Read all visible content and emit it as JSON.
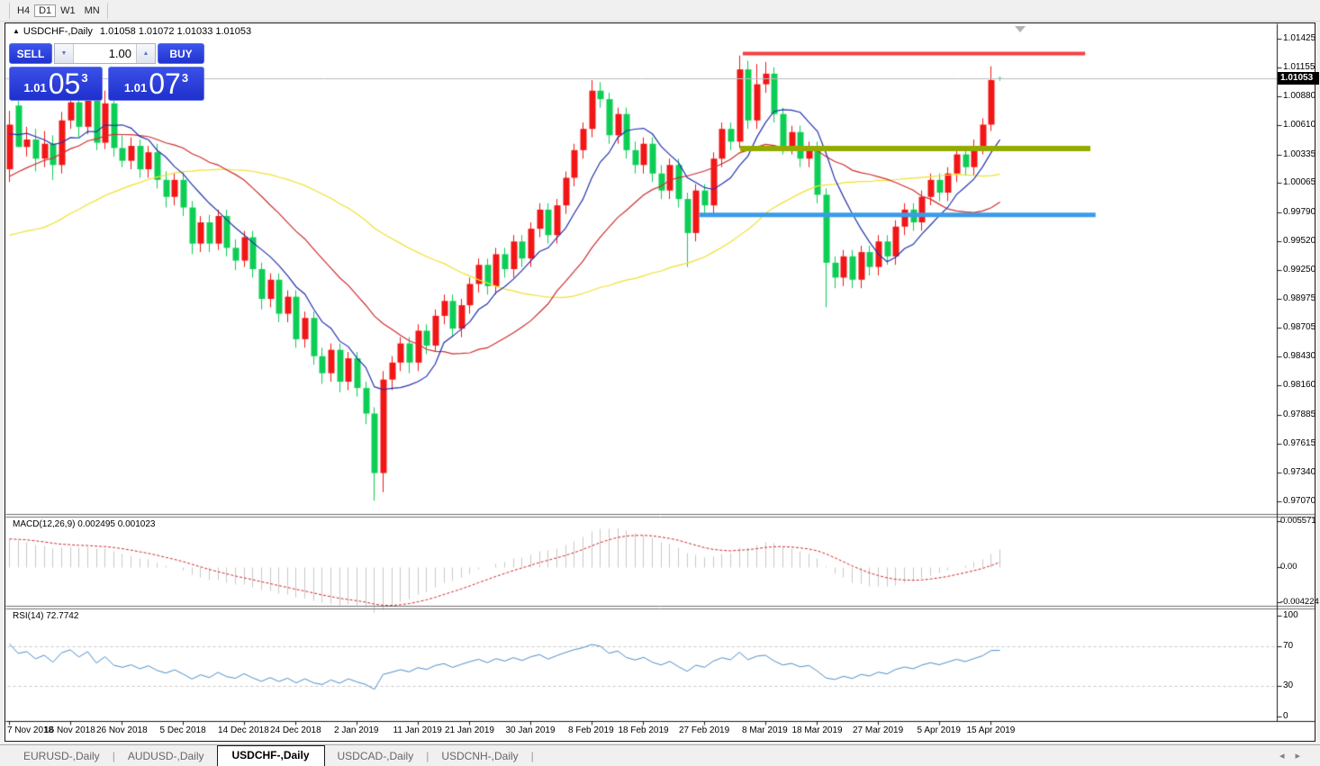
{
  "toolbar": {
    "timeframes": [
      {
        "label": "H4",
        "active": false
      },
      {
        "label": "D1",
        "active": true
      },
      {
        "label": "W1",
        "active": false
      },
      {
        "label": "MN",
        "active": false
      }
    ]
  },
  "chart": {
    "title": {
      "icon": "▲",
      "symbol": "USDCHF-,Daily",
      "ohlc_text": "1.01058 1.01072 1.01033 1.01053"
    },
    "trade_panel": {
      "sell_label": "SELL",
      "buy_label": "BUY",
      "volume": "1.00",
      "down_icon": "▼",
      "up_icon": "▲",
      "sell_price": {
        "prefix": "1.01",
        "big": "05",
        "sup": "3"
      },
      "buy_price": {
        "prefix": "1.01",
        "big": "07",
        "sup": "3"
      }
    },
    "colors": {
      "candle_up": "#F21616",
      "candle_down": "#0DCE55",
      "ma_fast": "#2333B0",
      "ma_mid": "#CE2F2F",
      "ma_slow": "#F0E130",
      "macd_bar": "#c9c9c9",
      "macd_signal": "#D02B2B",
      "rsi_line": "#4D8FCC",
      "price_line": "#bbbbbb"
    }
  },
  "chart_data": {
    "type": "candlestick",
    "symbol": "USDCHF-",
    "timeframe": "Daily",
    "current_price": 1.01053,
    "current_price_label": "1.01053",
    "price_axis_ticks": [
      "1.01425",
      "1.01155",
      "1.00880",
      "1.00610",
      "1.00335",
      "1.00065",
      "0.99790",
      "0.99520",
      "0.99250",
      "0.98975",
      "0.98705",
      "0.98430",
      "0.98160",
      "0.97885",
      "0.97615",
      "0.97340",
      "0.97070"
    ],
    "date_ticks": [
      {
        "index": 0,
        "label": "7 Nov 2018"
      },
      {
        "index": 7,
        "label": "16 Nov 2018"
      },
      {
        "index": 13,
        "label": "26 Nov 2018"
      },
      {
        "index": 20,
        "label": "5 Dec 2018"
      },
      {
        "index": 27,
        "label": "14 Dec 2018"
      },
      {
        "index": 33,
        "label": "24 Dec 2018"
      },
      {
        "index": 40,
        "label": "2 Jan 2019"
      },
      {
        "index": 47,
        "label": "11 Jan 2019"
      },
      {
        "index": 53,
        "label": "21 Jan 2019"
      },
      {
        "index": 60,
        "label": "30 Jan 2019"
      },
      {
        "index": 67,
        "label": "8 Feb 2019"
      },
      {
        "index": 73,
        "label": "18 Feb 2019"
      },
      {
        "index": 80,
        "label": "27 Feb 2019"
      },
      {
        "index": 87,
        "label": "8 Mar 2019"
      },
      {
        "index": 93,
        "label": "18 Mar 2019"
      },
      {
        "index": 100,
        "label": "27 Mar 2019"
      },
      {
        "index": 107,
        "label": "5 Apr 2019"
      },
      {
        "index": 113,
        "label": "15 Apr 2019"
      }
    ],
    "warmup_closes": [
      0.986,
      0.9868,
      0.9862,
      0.9874,
      0.988,
      0.9872,
      0.9886,
      0.9892,
      0.9884,
      0.9898,
      0.9906,
      0.9898,
      0.9912,
      0.992,
      0.9912,
      0.9926,
      0.9934,
      0.9926,
      0.994,
      0.9948,
      0.9952,
      0.9964,
      0.9958,
      0.9972,
      0.998,
      0.9974,
      0.999,
      1.0,
      0.9992,
      1.0008,
      1.002,
      1.0012,
      1.003,
      1.0045,
      1.0038,
      1.0055,
      1.0068,
      1.006,
      1.0052,
      1.0045
    ],
    "candles": [
      [
        1.002,
        1.0075,
        1.0008,
        1.0062
      ],
      [
        1.008,
        1.009,
        1.0052,
        1.0041
      ],
      [
        1.0041,
        1.006,
        1.0032,
        1.0048
      ],
      [
        1.0048,
        1.0058,
        1.0018,
        1.003
      ],
      [
        1.003,
        1.0056,
        1.0022,
        1.0044
      ],
      [
        1.0044,
        1.0052,
        1.001,
        1.0024
      ],
      [
        1.0024,
        1.0074,
        1.0016,
        1.0066
      ],
      [
        1.0066,
        1.0092,
        1.0058,
        1.0083
      ],
      [
        1.0083,
        1.0091,
        1.005,
        1.006
      ],
      [
        1.006,
        1.0098,
        1.0053,
        1.009
      ],
      [
        1.009,
        1.0097,
        1.0038,
        1.0045
      ],
      [
        1.0045,
        1.0094,
        1.0039,
        1.0082
      ],
      [
        1.0082,
        1.0089,
        1.0032,
        1.004
      ],
      [
        1.004,
        1.0052,
        1.0022,
        1.0028
      ],
      [
        1.0028,
        1.005,
        1.002,
        1.0042
      ],
      [
        1.0042,
        1.0048,
        1.0012,
        1.002
      ],
      [
        1.002,
        1.0042,
        1.0012,
        1.0036
      ],
      [
        1.0036,
        1.0044,
        1.0002,
        1.001
      ],
      [
        1.001,
        1.0018,
        0.9984,
        0.9994
      ],
      [
        0.9994,
        1.0016,
        0.9986,
        1.001
      ],
      [
        1.001,
        1.0017,
        0.9976,
        0.9984
      ],
      [
        0.9984,
        0.999,
        0.994,
        0.995
      ],
      [
        0.995,
        0.9976,
        0.9942,
        0.997
      ],
      [
        0.997,
        0.9977,
        0.9942,
        0.995
      ],
      [
        0.995,
        0.9982,
        0.9944,
        0.9976
      ],
      [
        0.9976,
        0.9982,
        0.9938,
        0.9946
      ],
      [
        0.9946,
        0.9954,
        0.9925,
        0.9934
      ],
      [
        0.9934,
        0.9962,
        0.9928,
        0.9956
      ],
      [
        0.9956,
        0.9962,
        0.9918,
        0.9926
      ],
      [
        0.9926,
        0.9932,
        0.9888,
        0.9898
      ],
      [
        0.9898,
        0.9922,
        0.989,
        0.9916
      ],
      [
        0.9916,
        0.9922,
        0.9876,
        0.9884
      ],
      [
        0.9884,
        0.9906,
        0.9876,
        0.99
      ],
      [
        0.99,
        0.9906,
        0.9852,
        0.986
      ],
      [
        0.986,
        0.9886,
        0.9852,
        0.988
      ],
      [
        0.988,
        0.9886,
        0.9836,
        0.9844
      ],
      [
        0.9844,
        0.9852,
        0.9818,
        0.9828
      ],
      [
        0.9828,
        0.9856,
        0.982,
        0.985
      ],
      [
        0.985,
        0.9856,
        0.981,
        0.982
      ],
      [
        0.982,
        0.9848,
        0.9812,
        0.9842
      ],
      [
        0.9842,
        0.9848,
        0.9806,
        0.9814
      ],
      [
        0.9814,
        0.982,
        0.978,
        0.979
      ],
      [
        0.979,
        0.9796,
        0.9708,
        0.9734
      ],
      [
        0.9734,
        0.983,
        0.9716,
        0.9822
      ],
      [
        0.9822,
        0.9844,
        0.9812,
        0.9838
      ],
      [
        0.9838,
        0.9862,
        0.983,
        0.9856
      ],
      [
        0.9856,
        0.9862,
        0.9828,
        0.9838
      ],
      [
        0.9838,
        0.9874,
        0.983,
        0.9868
      ],
      [
        0.9868,
        0.9874,
        0.9846,
        0.9854
      ],
      [
        0.9854,
        0.9888,
        0.9848,
        0.9882
      ],
      [
        0.9882,
        0.9902,
        0.9874,
        0.9896
      ],
      [
        0.9896,
        0.9902,
        0.9862,
        0.987
      ],
      [
        0.987,
        0.9898,
        0.9862,
        0.9892
      ],
      [
        0.9892,
        0.9918,
        0.9884,
        0.9912
      ],
      [
        0.9912,
        0.9936,
        0.9904,
        0.993
      ],
      [
        0.993,
        0.9936,
        0.9902,
        0.991
      ],
      [
        0.991,
        0.9946,
        0.9902,
        0.994
      ],
      [
        0.994,
        0.9946,
        0.9918,
        0.9926
      ],
      [
        0.9926,
        0.9958,
        0.9918,
        0.9952
      ],
      [
        0.9952,
        0.9958,
        0.9928,
        0.9936
      ],
      [
        0.9936,
        0.997,
        0.9928,
        0.9964
      ],
      [
        0.9964,
        0.9988,
        0.9956,
        0.9982
      ],
      [
        0.9982,
        0.9988,
        0.995,
        0.9958
      ],
      [
        0.9958,
        0.9992,
        0.995,
        0.9986
      ],
      [
        0.9986,
        1.0018,
        0.9978,
        1.0012
      ],
      [
        1.0012,
        1.0044,
        1.0004,
        1.0038
      ],
      [
        1.0038,
        1.0064,
        1.003,
        1.0058
      ],
      [
        1.0058,
        1.0104,
        1.005,
        1.0094
      ],
      [
        1.0094,
        1.0102,
        1.0078,
        1.0086
      ],
      [
        1.0086,
        1.0092,
        1.0044,
        1.0052
      ],
      [
        1.0052,
        1.0078,
        1.0044,
        1.0072
      ],
      [
        1.0072,
        1.0078,
        1.003,
        1.0038
      ],
      [
        1.0038,
        1.0046,
        1.0016,
        1.0024
      ],
      [
        1.0024,
        1.005,
        1.0016,
        1.0044
      ],
      [
        1.0044,
        1.005,
        1.0008,
        1.0016
      ],
      [
        1.0016,
        1.0024,
        0.9992,
        1.0
      ],
      [
        1.0,
        1.003,
        0.9992,
        1.0024
      ],
      [
        1.0024,
        1.003,
        0.9984,
        0.9992
      ],
      [
        0.9992,
        0.9998,
        0.9928,
        0.996
      ],
      [
        0.996,
        1.0006,
        0.9952,
        1.0
      ],
      [
        1.0,
        1.0006,
        0.9978,
        0.9986
      ],
      [
        0.9986,
        1.0036,
        0.9978,
        1.003
      ],
      [
        1.003,
        1.0064,
        1.0022,
        1.0058
      ],
      [
        1.0058,
        1.0064,
        1.0038,
        1.0046
      ],
      [
        1.0046,
        1.0127,
        1.004,
        1.0114
      ],
      [
        1.0114,
        1.0122,
        1.0058,
        1.0066
      ],
      [
        1.0066,
        1.0119,
        1.0058,
        1.01
      ],
      [
        1.01,
        1.0121,
        1.0092,
        1.011
      ],
      [
        1.011,
        1.0116,
        1.0064,
        1.0072
      ],
      [
        1.0072,
        1.0078,
        1.0034,
        1.0042
      ],
      [
        1.0042,
        1.0061,
        1.0034,
        1.0055
      ],
      [
        1.0055,
        1.0061,
        1.0022,
        1.003
      ],
      [
        1.003,
        1.0046,
        1.0022,
        1.004
      ],
      [
        1.004,
        1.0046,
        0.9988,
        0.9996
      ],
      [
        0.9996,
        1.0002,
        0.989,
        0.9932
      ],
      [
        0.9932,
        0.9938,
        0.9908,
        0.9918
      ],
      [
        0.9918,
        0.9944,
        0.991,
        0.9938
      ],
      [
        0.9938,
        0.9944,
        0.9908,
        0.9916
      ],
      [
        0.9916,
        0.9948,
        0.9908,
        0.9942
      ],
      [
        0.9942,
        0.9948,
        0.992,
        0.9928
      ],
      [
        0.9928,
        0.9958,
        0.992,
        0.9952
      ],
      [
        0.9952,
        0.9958,
        0.993,
        0.9938
      ],
      [
        0.9938,
        0.9972,
        0.993,
        0.9966
      ],
      [
        0.9966,
        0.9988,
        0.9958,
        0.9982
      ],
      [
        0.9982,
        0.9988,
        0.9962,
        0.997
      ],
      [
        0.997,
        1.0,
        0.9962,
        0.9994
      ],
      [
        0.9994,
        1.0016,
        0.9986,
        1.001
      ],
      [
        1.001,
        1.0016,
        0.999,
        0.9998
      ],
      [
        0.9998,
        1.0022,
        0.999,
        1.0016
      ],
      [
        1.0016,
        1.004,
        1.0008,
        1.0034
      ],
      [
        1.0034,
        1.004,
        1.0014,
        1.0022
      ],
      [
        1.0022,
        1.0048,
        1.0014,
        1.0042
      ],
      [
        1.0042,
        1.0068,
        1.0034,
        1.0062
      ],
      [
        1.0062,
        1.0117,
        1.0056,
        1.0104
      ],
      [
        1.01058,
        1.01072,
        1.01033,
        1.01053
      ]
    ],
    "moving_averages": [
      {
        "name": "fast",
        "period": 8
      },
      {
        "name": "mid",
        "period": 21
      },
      {
        "name": "slow",
        "period": 45
      }
    ],
    "macd": {
      "label": "MACD(12,26,9)",
      "values_text": "0.002495 0.001023",
      "fast": 12,
      "slow": 26,
      "signal": 9,
      "axis": [
        {
          "label": "0.005571",
          "value": 0.005571
        },
        {
          "label": "0.00",
          "value": 0
        },
        {
          "label": "-0.004224",
          "value": -0.004224
        }
      ]
    },
    "rsi": {
      "label": "RSI(14)",
      "value_text": "72.7742",
      "period": 14,
      "axis": [
        {
          "label": "100",
          "value": 100
        },
        {
          "label": "70",
          "value": 70
        },
        {
          "label": "30",
          "value": 30
        },
        {
          "label": "0",
          "value": 0
        }
      ],
      "dashed_levels": [
        70,
        30
      ]
    },
    "objects": {
      "hlines": [
        {
          "name": "resistance-line",
          "price": 1.0129,
          "from_index": 84.4,
          "to_index": 123.8,
          "color": "#F54040",
          "width": 4
        },
        {
          "name": "breakout-line",
          "price": 1.00395,
          "from_index": 84.1,
          "to_index": 124.4,
          "color": "#93AB00",
          "width": 6
        },
        {
          "name": "support-line",
          "price": 0.9977,
          "from_index": 79.4,
          "to_index": 125.0,
          "color": "#3C9BE8",
          "width": 5
        }
      ]
    }
  },
  "tab_bar": {
    "tabs": [
      {
        "label": "EURUSD-,Daily",
        "active": false
      },
      {
        "label": "AUDUSD-,Daily",
        "active": false
      },
      {
        "label": "USDCHF-,Daily",
        "active": true
      },
      {
        "label": "USDCAD-,Daily",
        "active": false
      },
      {
        "label": "USDCNH-,Daily",
        "active": false
      }
    ],
    "separator": "|",
    "scroll_left_icon": "◂",
    "scroll_right_icon": "▸"
  }
}
